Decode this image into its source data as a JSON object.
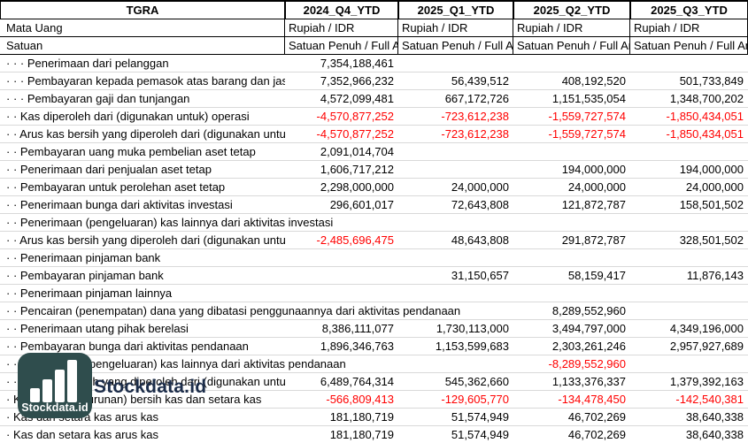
{
  "header": {
    "ticker": "TGRA",
    "periods": [
      "2024_Q4_YTD",
      "2025_Q1_YTD",
      "2025_Q2_YTD",
      "2025_Q3_YTD"
    ]
  },
  "meta": [
    {
      "label": "Mata Uang",
      "values": [
        "Rupiah / IDR",
        "Rupiah / IDR",
        "Rupiah / IDR",
        "Rupiah / IDR"
      ]
    },
    {
      "label": "Satuan",
      "values": [
        "Satuan Penuh / Full Amount",
        "Satuan Penuh / Full Amount",
        "Satuan Penuh / Full Amount",
        "Satuan Penuh / Full Amount"
      ]
    }
  ],
  "rows": [
    {
      "label": "· · · Penerimaan dari pelanggan",
      "values": [
        "7,354,188,461",
        "",
        "",
        ""
      ]
    },
    {
      "label": "· · · Pembayaran kepada pemasok atas barang dan jasa",
      "values": [
        "7,352,966,232",
        "56,439,512",
        "408,192,520",
        "501,733,849"
      ]
    },
    {
      "label": "· · · Pembayaran gaji dan tunjangan",
      "values": [
        "4,572,099,481",
        "667,172,726",
        "1,151,535,054",
        "1,348,700,202"
      ]
    },
    {
      "label": "· · Kas diperoleh dari (digunakan untuk) operasi",
      "values": [
        "-4,570,877,252",
        "-723,612,238",
        "-1,559,727,574",
        "-1,850,434,051"
      ]
    },
    {
      "label": "· · Arus kas bersih yang diperoleh dari (digunakan untuk) aktivitas operasi",
      "values": [
        "-4,570,877,252",
        "-723,612,238",
        "-1,559,727,574",
        "-1,850,434,051"
      ]
    },
    {
      "label": "· · Pembayaran uang muka pembelian aset tetap",
      "values": [
        "2,091,014,704",
        "",
        "",
        ""
      ]
    },
    {
      "label": "· · Penerimaan dari penjualan aset tetap",
      "values": [
        "1,606,717,212",
        "",
        "194,000,000",
        "194,000,000"
      ]
    },
    {
      "label": "· · Pembayaran untuk perolehan aset tetap",
      "values": [
        "2,298,000,000",
        "24,000,000",
        "24,000,000",
        "24,000,000"
      ]
    },
    {
      "label": "· · Penerimaan bunga dari aktivitas investasi",
      "values": [
        "296,601,017",
        "72,643,808",
        "121,872,787",
        "158,501,502"
      ]
    },
    {
      "label": "· · Penerimaan (pengeluaran) kas lainnya dari aktivitas investasi",
      "values": [
        "",
        "",
        "",
        ""
      ]
    },
    {
      "label": "· · Arus kas bersih yang diperoleh dari (digunakan untuk) aktivitas investasi",
      "values": [
        "-2,485,696,475",
        "48,643,808",
        "291,872,787",
        "328,501,502"
      ]
    },
    {
      "label": "· · Penerimaan pinjaman bank",
      "values": [
        "",
        "",
        "",
        ""
      ]
    },
    {
      "label": "· · Pembayaran pinjaman bank",
      "values": [
        "",
        "31,150,657",
        "58,159,417",
        "11,876,143"
      ]
    },
    {
      "label": "· · Penerimaan pinjaman lainnya",
      "values": [
        "",
        "",
        "",
        ""
      ]
    },
    {
      "label": "· · Pencairan (penempatan) dana yang dibatasi penggunaannya dari aktivitas pendanaan",
      "values": [
        "",
        "",
        "8,289,552,960",
        ""
      ]
    },
    {
      "label": "· · Penerimaan utang pihak berelasi",
      "values": [
        "8,386,111,077",
        "1,730,113,000",
        "3,494,797,000",
        "4,349,196,000"
      ]
    },
    {
      "label": "· · Pembayaran bunga dari aktivitas pendanaan",
      "values": [
        "1,896,346,763",
        "1,153,599,683",
        "2,303,261,246",
        "2,957,927,689"
      ]
    },
    {
      "label": "· · Penerimaan (pengeluaran) kas lainnya dari aktivitas pendanaan",
      "values": [
        "",
        "",
        "-8,289,552,960",
        ""
      ]
    },
    {
      "label": "· · Arus kas bersih yang diperoleh dari (digunakan untuk) aktivitas pendanaan",
      "values": [
        "6,489,764,314",
        "545,362,660",
        "1,133,376,337",
        "1,379,392,163"
      ]
    },
    {
      "label": "· Kenaikan (penurunan) bersih kas dan setara kas",
      "values": [
        "-566,809,413",
        "-129,605,770",
        "-134,478,450",
        "-142,540,381"
      ]
    },
    {
      "label": "· Kas dan setara kas arus kas",
      "values": [
        "181,180,719",
        "51,574,949",
        "46,702,269",
        "38,640,338"
      ]
    },
    {
      "label": "· Kas dan setara kas arus kas",
      "values": [
        "181,180,719",
        "51,574,949",
        "46,702,269",
        "38,640,338"
      ]
    }
  ],
  "watermark": {
    "brand": "Stockdata.id",
    "logo_label": "Stockdata.id"
  },
  "colors": {
    "negative": "#ff0000",
    "logo_bg": "#2f4d4d",
    "brand_text": "#1c2d4a"
  }
}
